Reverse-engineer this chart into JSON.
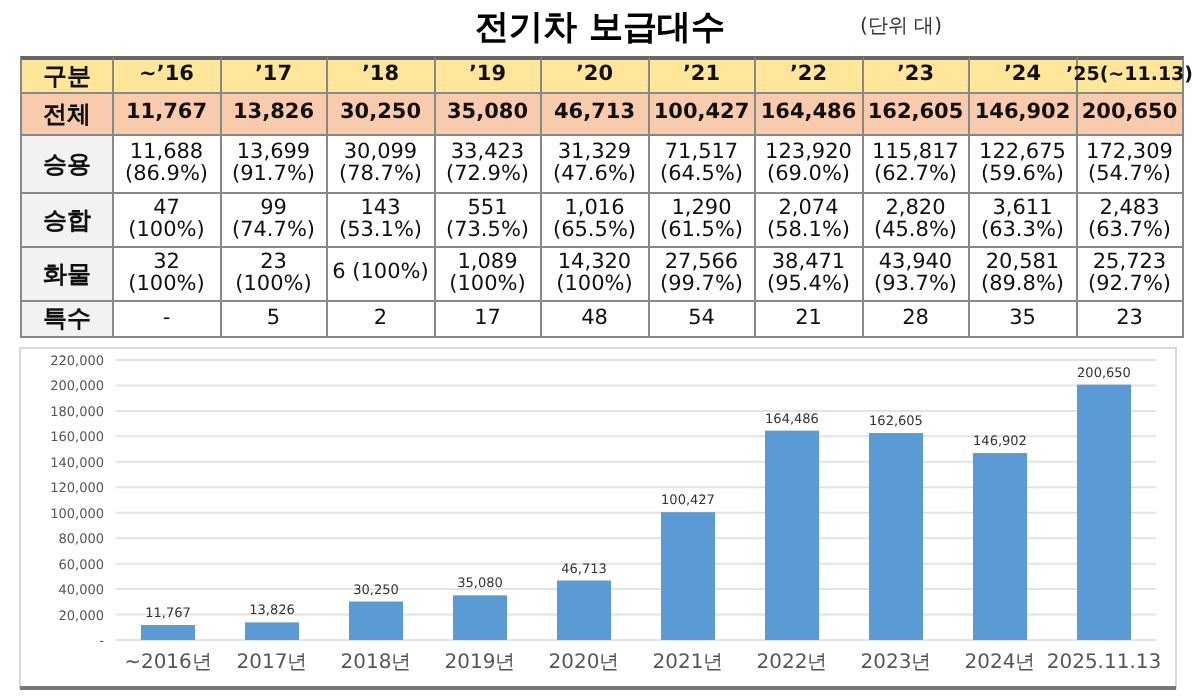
{
  "chart_data": [
    {
      "type": "heatmap",
      "title": "전기차 보급대수",
      "subtitle": "(단위 대)",
      "annotations": [
        "구분"
      ],
      "grid": true,
      "categories": [
        "~’16",
        "’17",
        "’18",
        "’19",
        "’20",
        "’21",
        "’22",
        "’23",
        "’24",
        "’25(~11.13)"
      ],
      "y_categories": [
        "전체",
        "승용",
        "승합",
        "화물",
        "특수"
      ],
      "cells": [
        [
          null,
          null,
          null,
          null,
          null,
          null,
          null,
          null,
          null,
          null
        ],
        [
          null,
          null,
          null,
          null,
          null,
          null,
          null,
          null,
          null,
          null
        ],
        [
          null,
          null,
          null,
          null,
          null,
          null,
          null,
          null,
          null,
          null
        ],
        [
          null,
          null,
          null,
          null,
          null,
          null,
          null,
          null,
          null,
          null
        ],
        [
          null,
          null,
          null,
          null,
          null,
          null,
          null,
          null,
          null,
          null
        ]
      ],
      "cell_labels": [
        [
          "11,767",
          "13,826",
          "30,250",
          "35,080",
          "46,713",
          "100,427",
          "164,486",
          "162,605",
          "146,902",
          "200,650"
        ],
        [
          "11,688 (86.9%)",
          "13,699 (91.7%)",
          "30,099 (78.7%)",
          "33,423 (72.9%)",
          "31,329 (47.6%)",
          "71,517 (64.5%)",
          "123,920 (69.0%)",
          "115,817 (62.7%)",
          "122,675 (59.6%)",
          "172,309 (54.7%)"
        ],
        [
          "47 (100%)",
          "99 (74.7%)",
          "143 (53.1%)",
          "551 (73.5%)",
          "1,016 (65.5%)",
          "1,290 (61.5%)",
          "2,074 (58.1%)",
          "2,820 (45.8%)",
          "3,611 (63.3%)",
          "2,483 (63.7%)"
        ],
        [
          "32 (100%)",
          "23 (100%)",
          "6 (100%)",
          "1,089 (100%)",
          "14,320 (100%)",
          "27,566 (99.7%)",
          "38,471 (95.4%)",
          "43,940 (93.7%)",
          "20,581 (89.8%)",
          "25,723 (92.7%)"
        ],
        [
          "-",
          "5",
          "2",
          "17",
          "48",
          "54",
          "21",
          "28",
          "35",
          "23"
        ]
      ]
    },
    {
      "type": "bar",
      "categories": [
        "~2016년",
        "2017년",
        "2018년",
        "2019년",
        "2020년",
        "2021년",
        "2022년",
        "2023년",
        "2024년",
        "2025.11.13"
      ],
      "values": [
        11767,
        13826,
        30250,
        35080,
        46713,
        100427,
        164486,
        162605,
        146902,
        200650
      ],
      "value_labels": [
        "11,767",
        "13,826",
        "30,250",
        "35,080",
        "46,713",
        "100,427",
        "164,486",
        "162,605",
        "146,902",
        "200,650"
      ],
      "color": "#5b9bd5",
      "grid": "y",
      "ylim": [
        0,
        220000
      ],
      "yticks": [
        {
          "value": 0,
          "label": "-"
        },
        {
          "value": 20000,
          "label": "20,000"
        },
        {
          "value": 40000,
          "label": "40,000"
        },
        {
          "value": 60000,
          "label": "60,000"
        },
        {
          "value": 80000,
          "label": "80,000"
        },
        {
          "value": 100000,
          "label": "100,000"
        },
        {
          "value": 120000,
          "label": "120,000"
        },
        {
          "value": 140000,
          "label": "140,000"
        },
        {
          "value": 160000,
          "label": "160,000"
        },
        {
          "value": 180000,
          "label": "180,000"
        },
        {
          "value": 200000,
          "label": "200,000"
        },
        {
          "value": 220000,
          "label": "220,000"
        }
      ]
    }
  ]
}
